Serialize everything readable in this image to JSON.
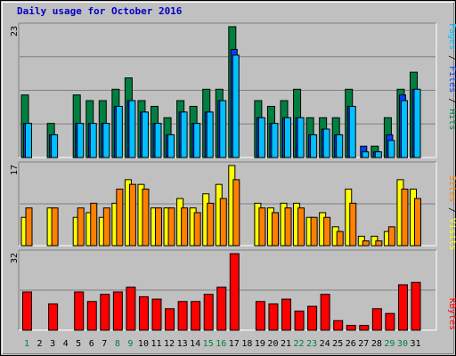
{
  "chart_data": {
    "type": "bar",
    "title": "Daily usage for October 2016",
    "x": [
      "1",
      "2",
      "3",
      "4",
      "5",
      "6",
      "7",
      "8",
      "9",
      "10",
      "11",
      "12",
      "13",
      "14",
      "15",
      "16",
      "17",
      "18",
      "19",
      "20",
      "21",
      "22",
      "23",
      "24",
      "25",
      "26",
      "27",
      "28",
      "29",
      "30",
      "31"
    ],
    "weekend_days": [
      "1",
      "8",
      "9",
      "15",
      "16",
      "22",
      "23",
      "29",
      "30"
    ],
    "panels": [
      {
        "id": "pages-files-hits",
        "max_label": "23",
        "ylim": [
          0,
          23
        ],
        "legend": [
          "Pages",
          "Files",
          "Hits"
        ],
        "series": [
          {
            "name": "Hits",
            "color": "#008040",
            "values": [
              11,
              0,
              6,
              0,
              11,
              10,
              10,
              12,
              14,
              10,
              9,
              7,
              10,
              9,
              12,
              12,
              23,
              0,
              10,
              9,
              10,
              12,
              7,
              7,
              7,
              12,
              0,
              2,
              7,
              12,
              15
            ]
          },
          {
            "name": "Files",
            "color": "#0040ff",
            "values": [
              6,
              0,
              4,
              0,
              6,
              6,
              6,
              9,
              10,
              8,
              6,
              4,
              8,
              6,
              8,
              10,
              19,
              0,
              7,
              6,
              7,
              7,
              4,
              5,
              4,
              9,
              2,
              1,
              4,
              11,
              12
            ]
          },
          {
            "name": "Pages",
            "color": "#00c0ff",
            "values": [
              6,
              0,
              4,
              0,
              6,
              6,
              6,
              9,
              10,
              8,
              6,
              4,
              8,
              6,
              8,
              10,
              18,
              0,
              7,
              6,
              7,
              7,
              4,
              5,
              4,
              9,
              1,
              1,
              3,
              10,
              12
            ]
          }
        ]
      },
      {
        "id": "sites-visits",
        "max_label": "17",
        "ylim": [
          0,
          17
        ],
        "legend": [
          "Sites",
          "Visits"
        ],
        "series": [
          {
            "name": "Visits",
            "color": "#ffff00",
            "values": [
              6,
              0,
              8,
              0,
              6,
              7,
              6,
              9,
              14,
              13,
              8,
              8,
              10,
              8,
              11,
              13,
              17,
              0,
              9,
              8,
              9,
              9,
              6,
              7,
              4,
              12,
              2,
              2,
              3,
              14,
              12
            ]
          },
          {
            "name": "Sites",
            "color": "#ff8000",
            "values": [
              8,
              0,
              8,
              0,
              8,
              9,
              8,
              12,
              13,
              12,
              8,
              8,
              8,
              7,
              9,
              10,
              14,
              0,
              8,
              7,
              8,
              8,
              6,
              6,
              3,
              9,
              1,
              1,
              4,
              12,
              10
            ]
          }
        ]
      },
      {
        "id": "kbytes",
        "max_label": "32",
        "ylim": [
          0,
          32
        ],
        "legend": [
          "KBytes"
        ],
        "series": [
          {
            "name": "KBytes",
            "color": "#ff0000",
            "values": [
              16,
              0,
              11,
              0,
              16,
              12,
              15,
              16,
              18,
              14,
              13,
              9,
              12,
              12,
              15,
              18,
              32,
              0,
              12,
              11,
              13,
              8,
              10,
              15,
              4,
              2,
              2,
              9,
              7,
              19,
              20
            ]
          }
        ]
      }
    ]
  }
}
